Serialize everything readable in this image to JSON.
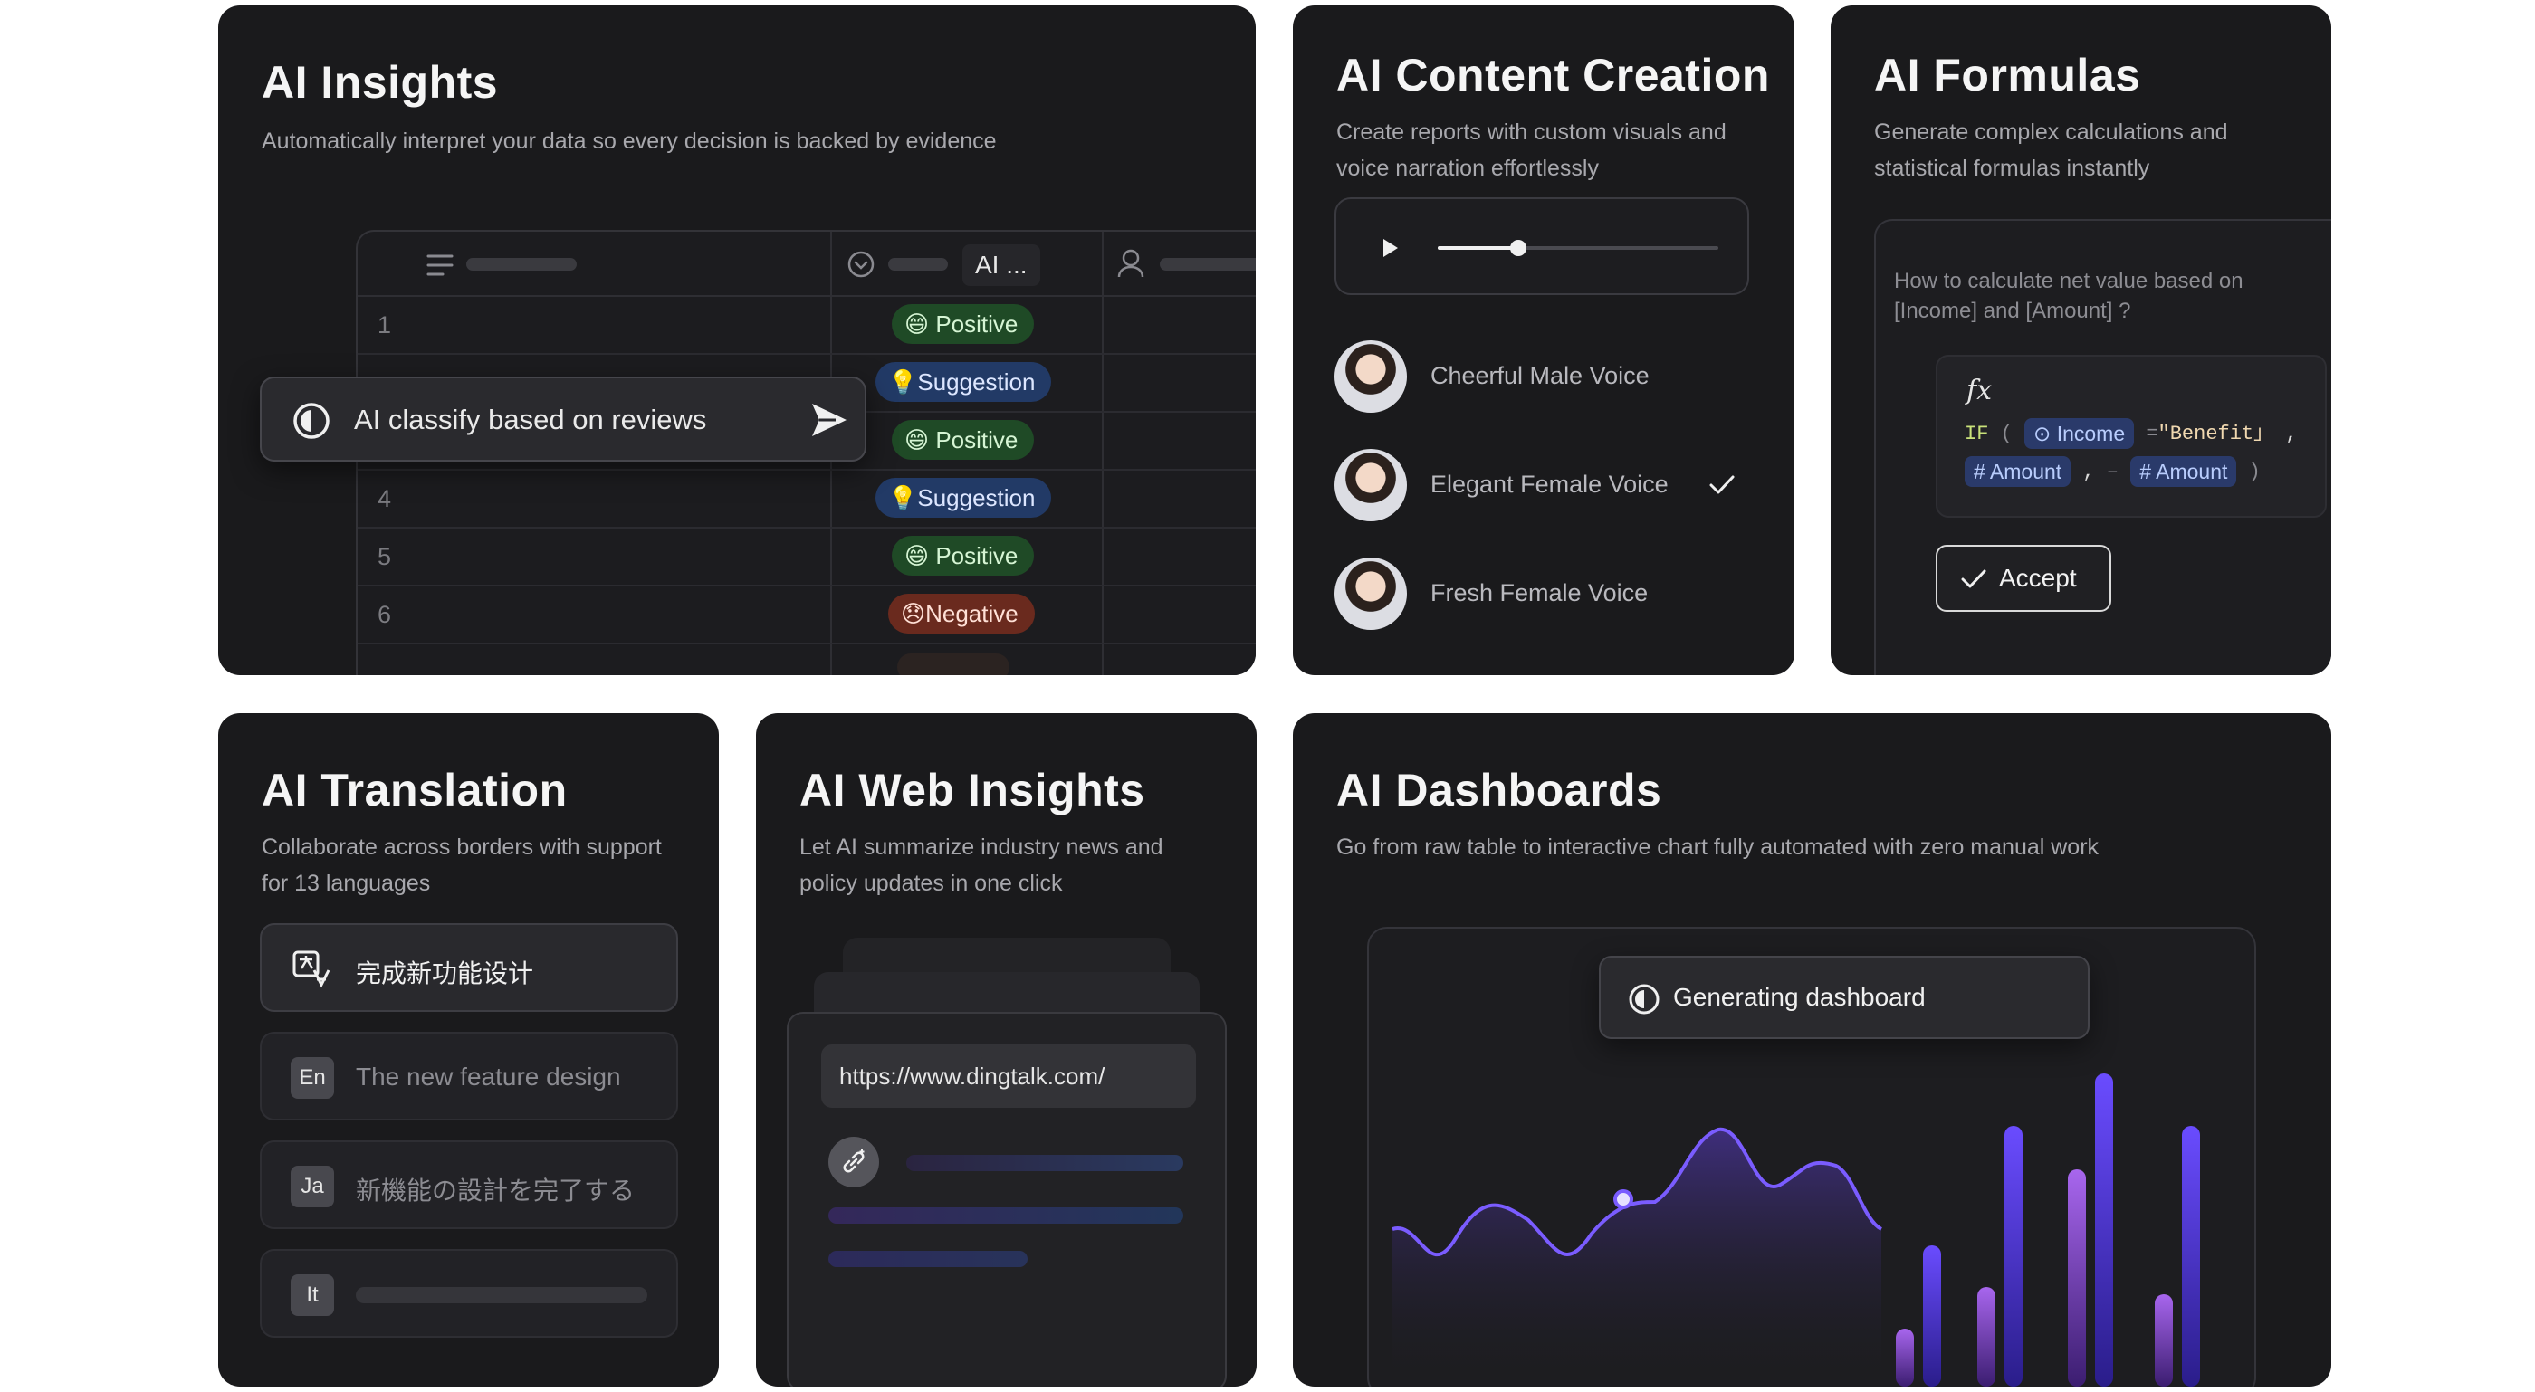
{
  "insights": {
    "title": "AI Insights",
    "subtitle": "Automatically interpret your data so every decision is backed by evidence",
    "ai_column_label": "AI ...",
    "prompt_text": "AI classify based on reviews",
    "rows": [
      {
        "num": "1",
        "tag": "😄 Positive",
        "kind": "pos"
      },
      {
        "num": "",
        "tag": "💡Suggestion",
        "kind": "sug"
      },
      {
        "num": "",
        "tag": "😄 Positive",
        "kind": "pos"
      },
      {
        "num": "4",
        "tag": "💡Suggestion",
        "kind": "sug"
      },
      {
        "num": "5",
        "tag": "😄 Positive",
        "kind": "pos"
      },
      {
        "num": "6",
        "tag": "😞Negative",
        "kind": "neg"
      }
    ]
  },
  "content": {
    "title": "AI Content Creation",
    "subtitle": "Create reports with custom visuals and voice narration effortlessly",
    "voices": [
      {
        "name": "Cheerful Male Voice",
        "selected": false
      },
      {
        "name": "Elegant Female Voice",
        "selected": true
      },
      {
        "name": "Fresh Female Voice",
        "selected": false
      }
    ]
  },
  "formulas": {
    "title": "AI Formulas",
    "subtitle": "Generate complex calculations and statistical formulas instantly",
    "question": "How to calculate net value based on [Income] and [Amount] ?",
    "fx_symbol": "fx",
    "if_keyword": "IF",
    "chip_income": "Income",
    "chip_amount": "Amount",
    "benefit_text": "\"Benefit」",
    "accept_label": "Accept"
  },
  "translation": {
    "title": "AI Translation",
    "subtitle": "Collaborate across borders with support for 13 languages",
    "source_text": "完成新功能设计",
    "items": [
      {
        "code": "En",
        "text": "The new feature design"
      },
      {
        "code": "Ja",
        "text": "新機能の設計を完了する"
      },
      {
        "code": "It",
        "text": ""
      }
    ]
  },
  "web": {
    "title": "AI Web Insights",
    "subtitle": "Let AI summarize industry news and policy updates in one click",
    "url": "https://www.dingtalk.com/"
  },
  "dashboards": {
    "title": "AI Dashboards",
    "subtitle": "Go from raw table to interactive chart fully automated with zero manual work",
    "status_text": "Generating dashboard"
  }
}
